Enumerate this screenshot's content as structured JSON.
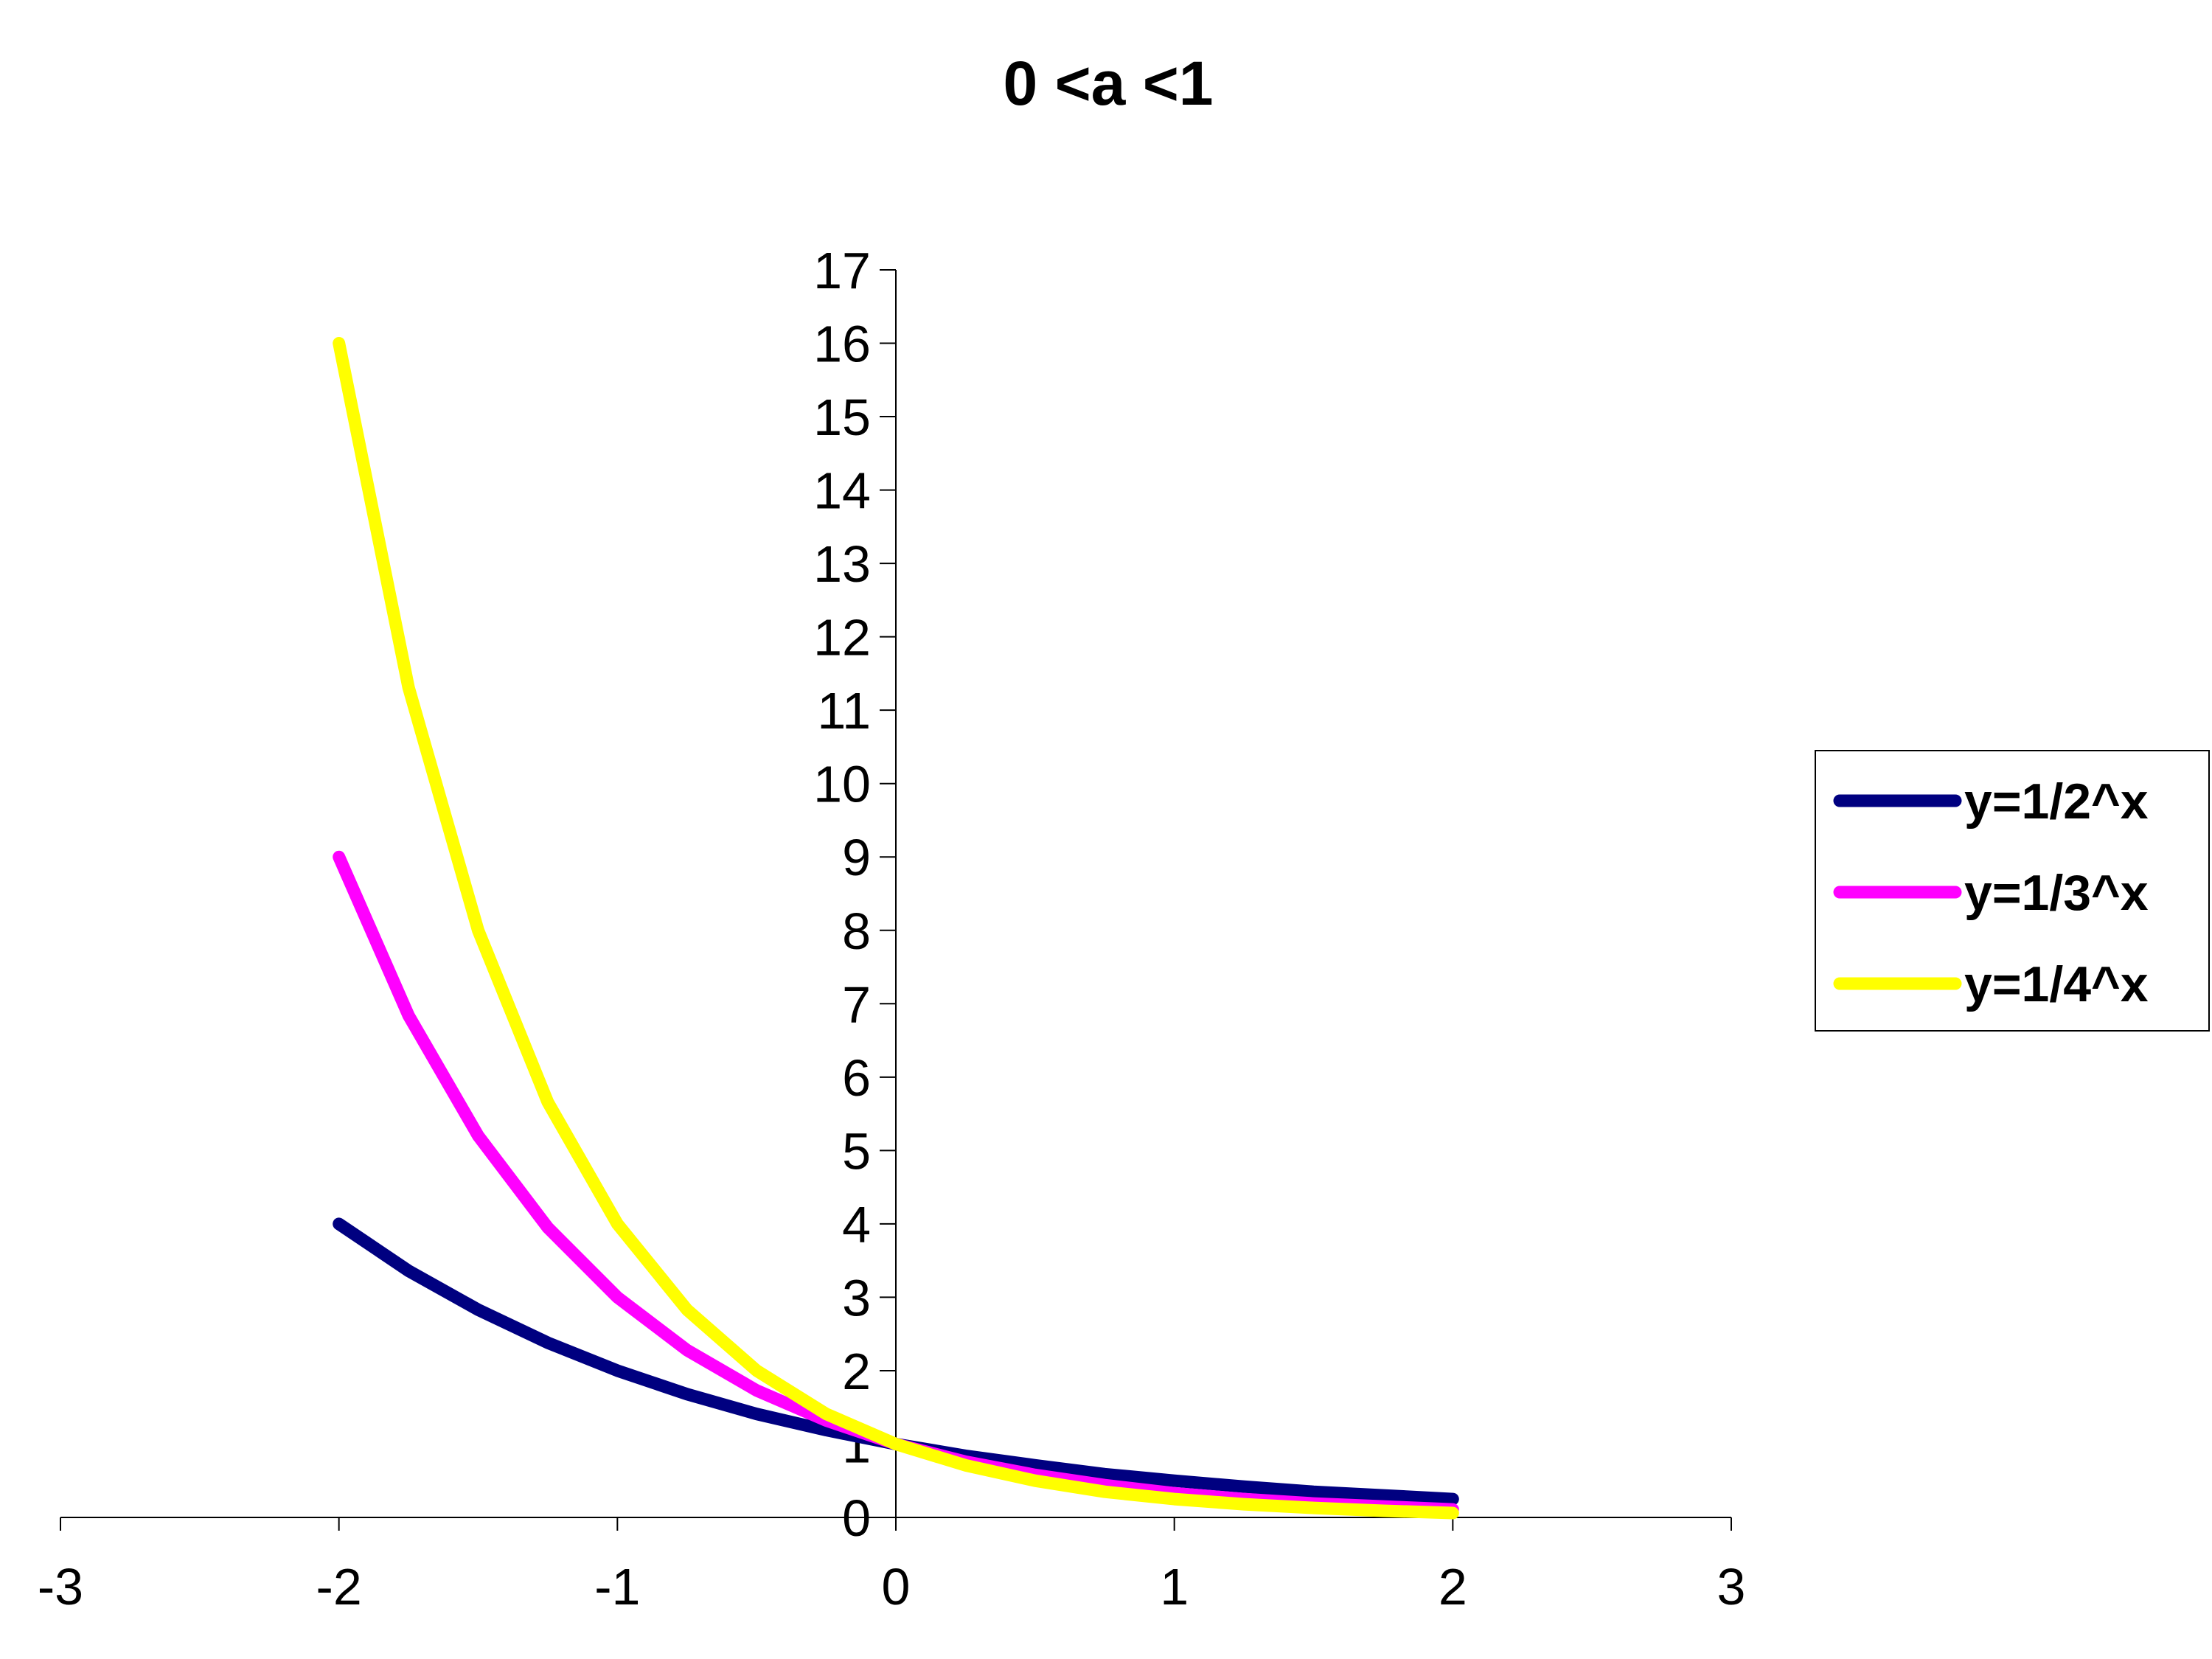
{
  "chart_data": {
    "type": "line",
    "title": "0 <a <1",
    "xlabel": "",
    "ylabel": "",
    "xlim": [
      -3,
      3
    ],
    "ylim": [
      0,
      17
    ],
    "x_ticks": [
      "-3",
      "-2",
      "-1",
      "0",
      "1",
      "2",
      "3"
    ],
    "y_ticks": [
      "0",
      "1",
      "2",
      "3",
      "4",
      "5",
      "6",
      "7",
      "8",
      "9",
      "10",
      "11",
      "12",
      "13",
      "14",
      "15",
      "16",
      "17"
    ],
    "grid": false,
    "legend_position": "right",
    "x": [
      -2,
      -1.75,
      -1.5,
      -1.25,
      -1,
      -0.75,
      -0.5,
      -0.25,
      0,
      0.25,
      0.5,
      0.75,
      1,
      1.25,
      1.5,
      1.75,
      2
    ],
    "series": [
      {
        "name": "y=1/2^x",
        "color": "#000080",
        "values": [
          4,
          3.36,
          2.83,
          2.38,
          2,
          1.68,
          1.41,
          1.19,
          1,
          0.84,
          0.71,
          0.59,
          0.5,
          0.42,
          0.35,
          0.3,
          0.25
        ]
      },
      {
        "name": "y=1/3^x",
        "color": "#FF00FF",
        "values": [
          9,
          6.84,
          5.2,
          3.95,
          3,
          2.28,
          1.73,
          1.32,
          1,
          0.76,
          0.58,
          0.44,
          0.33,
          0.25,
          0.19,
          0.15,
          0.11
        ]
      },
      {
        "name": "y=1/4^x",
        "color": "#FFFF00",
        "values": [
          16,
          11.31,
          8,
          5.66,
          4,
          2.83,
          2,
          1.41,
          1,
          0.71,
          0.5,
          0.35,
          0.25,
          0.18,
          0.13,
          0.09,
          0.06
        ]
      }
    ]
  }
}
